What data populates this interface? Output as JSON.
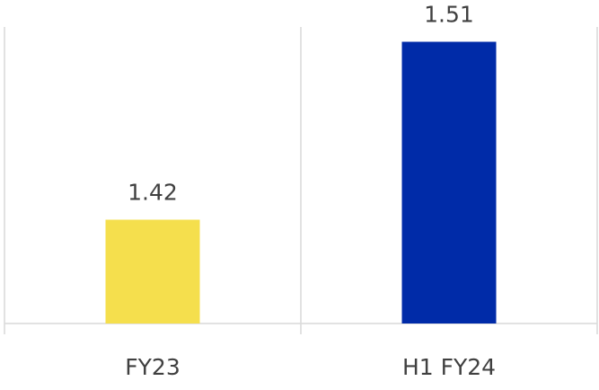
{
  "chart_data": {
    "type": "bar",
    "categories": [
      "FY23",
      "H1 FY24"
    ],
    "values": [
      1.42,
      1.51
    ],
    "colors": [
      "#f5df4d",
      "#002ba8"
    ],
    "ylim": [
      1.3675,
      1.5175
    ],
    "grid": true
  }
}
